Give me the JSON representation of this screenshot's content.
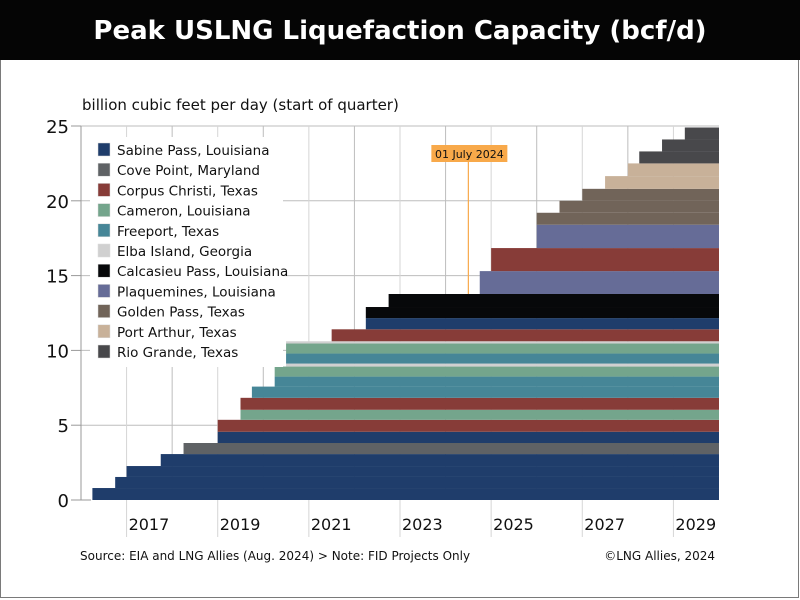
{
  "title": "Peak USLNG Liquefaction Capacity (bcf/d)",
  "footer": {
    "source": "Source: EIA and LNG Allies (Aug. 2024) > Note: FID Projects Only",
    "copyright": "©LNG Allies, 2024"
  },
  "chart_data": {
    "type": "area",
    "subtype": "stacked step area",
    "title": "Peak USLNG Liquefaction Capacity (bcf/d)",
    "ylabel": "billion cubic feet per day (start of quarter)",
    "xlabel": "",
    "xlim": [
      2016,
      2030
    ],
    "ylim": [
      0,
      25
    ],
    "y_ticks": [
      0,
      5,
      10,
      15,
      20,
      25
    ],
    "x_tick_labels": [
      "2017",
      "2019",
      "2021",
      "2023",
      "2025",
      "2027",
      "2029"
    ],
    "grid": true,
    "legend_position": "top-left",
    "projects": [
      {
        "name": "Sabine Pass, Louisiana",
        "color": "#1f3d6b"
      },
      {
        "name": "Cove Point, Maryland",
        "color": "#5f6265"
      },
      {
        "name": "Corpus Christi, Texas",
        "color": "#873c38"
      },
      {
        "name": "Cameron, Louisiana",
        "color": "#74a58c"
      },
      {
        "name": "Freeport, Texas",
        "color": "#468697"
      },
      {
        "name": "Elba Island, Georgia",
        "color": "#d0d0d0"
      },
      {
        "name": "Calcasieu Pass, Louisiana",
        "color": "#07080a"
      },
      {
        "name": "Plaquemines, Louisiana",
        "color": "#666c97"
      },
      {
        "name": "Golden Pass, Texas",
        "color": "#716459"
      },
      {
        "name": "Port Arthur, Texas",
        "color": "#c8b199"
      },
      {
        "name": "Rio Grande, Texas",
        "color": "#48484b"
      }
    ],
    "additions": [
      {
        "project": 0,
        "start": "2016-Q2",
        "capacity": 0.8
      },
      {
        "project": 0,
        "start": "2016-Q4",
        "capacity": 0.74
      },
      {
        "project": 0,
        "start": "2017-Q1",
        "capacity": 0.73
      },
      {
        "project": 0,
        "start": "2017-Q4",
        "capacity": 0.8
      },
      {
        "project": 1,
        "start": "2018-Q2",
        "capacity": 0.74
      },
      {
        "project": 0,
        "start": "2019-Q1",
        "capacity": 0.75
      },
      {
        "project": 2,
        "start": "2019-Q1",
        "capacity": 0.8
      },
      {
        "project": 3,
        "start": "2019-Q3",
        "capacity": 0.67
      },
      {
        "project": 2,
        "start": "2019-Q3",
        "capacity": 0.8
      },
      {
        "project": 4,
        "start": "2019-Q4",
        "capacity": 0.75
      },
      {
        "project": 4,
        "start": "2020-Q2",
        "capacity": 0.67
      },
      {
        "project": 3,
        "start": "2020-Q2",
        "capacity": 0.67
      },
      {
        "project": 5,
        "start": "2020-Q3",
        "capacity": 0.2
      },
      {
        "project": 4,
        "start": "2020-Q3",
        "capacity": 0.67
      },
      {
        "project": 3,
        "start": "2020-Q3",
        "capacity": 0.67
      },
      {
        "project": 5,
        "start": "2020-Q3",
        "capacity": 0.15
      },
      {
        "project": 2,
        "start": "2021-Q3",
        "capacity": 0.8
      },
      {
        "project": 0,
        "start": "2022-Q2",
        "capacity": 0.75
      },
      {
        "project": 6,
        "start": "2022-Q2",
        "capacity": 0.74
      },
      {
        "project": 6,
        "start": "2022-Q4",
        "capacity": 0.87
      },
      {
        "project": 7,
        "start": "2024-Q4",
        "capacity": 1.53
      },
      {
        "project": 2,
        "start": "2025-Q1",
        "capacity": 1.54
      },
      {
        "project": 7,
        "start": "2026-Q1",
        "capacity": 1.56
      },
      {
        "project": 8,
        "start": "2026-Q1",
        "capacity": 0.8
      },
      {
        "project": 8,
        "start": "2026-Q3",
        "capacity": 0.8
      },
      {
        "project": 8,
        "start": "2027-Q1",
        "capacity": 0.8
      },
      {
        "project": 9,
        "start": "2027-Q3",
        "capacity": 0.85
      },
      {
        "project": 9,
        "start": "2028-Q1",
        "capacity": 0.85
      },
      {
        "project": 10,
        "start": "2028-Q2",
        "capacity": 0.8
      },
      {
        "project": 10,
        "start": "2028-Q4",
        "capacity": 0.8
      },
      {
        "project": 10,
        "start": "2029-Q2",
        "capacity": 0.8
      }
    ],
    "annotation": {
      "label": "01 July 2024",
      "date": 2024.5,
      "color": "#f8a94a"
    }
  }
}
